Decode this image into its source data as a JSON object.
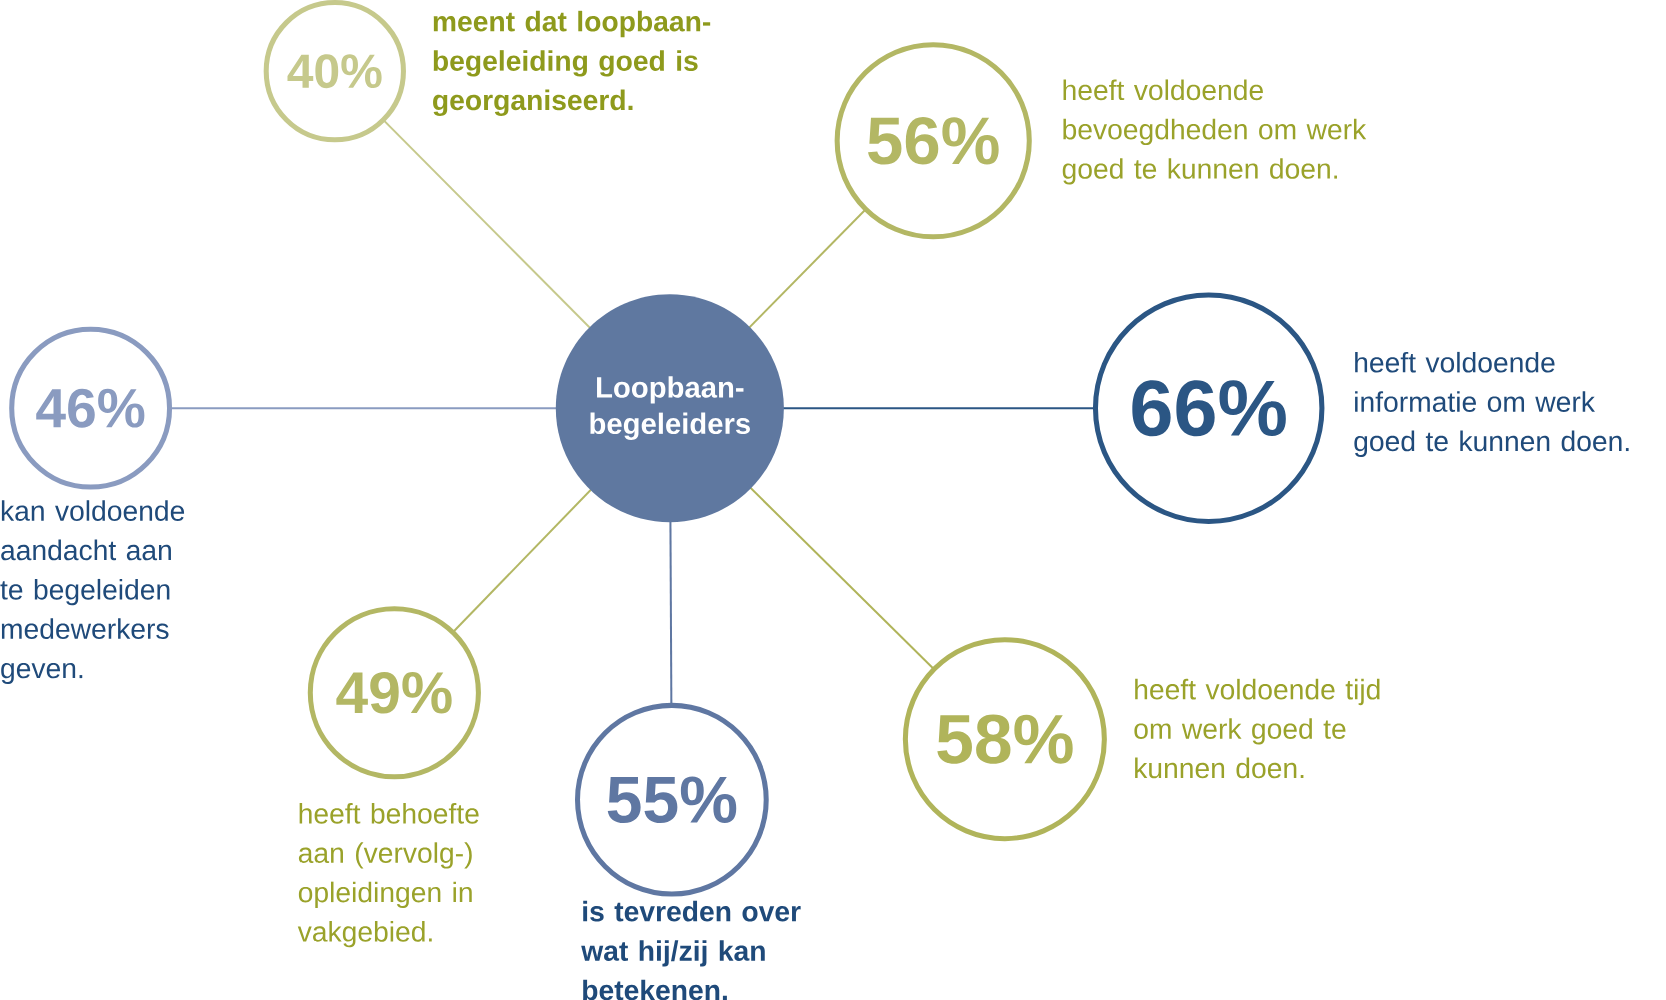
{
  "chart_data": {
    "type": "other",
    "title": "Loopbaan-begeleiders",
    "categories": [
      "meent dat loopbaan-begeleiding goed is georganiseerd.",
      "heeft voldoende bevoegdheden om werk goed te kunnen doen.",
      "heeft voldoende informatie om werk goed te kunnen doen.",
      "heeft voldoende tijd om werk goed te kunnen doen.",
      "is tevreden over wat hij/zij kan betekenen.",
      "heeft behoefte aan (vervolg-) opleidingen in vakgebied.",
      "kan voldoende aandacht aan te begeleiden medewerkers geven."
    ],
    "values": [
      40,
      56,
      66,
      58,
      55,
      49,
      46
    ],
    "value_labels": [
      "40%",
      "56%",
      "66%",
      "58%",
      "55%",
      "49%",
      "46%"
    ],
    "colors": [
      "#c6c98c",
      "#b3b764",
      "#2b5684",
      "#b0b45a",
      "#5f77a2",
      "#b3b764",
      "#8a9bc0"
    ]
  }
}
